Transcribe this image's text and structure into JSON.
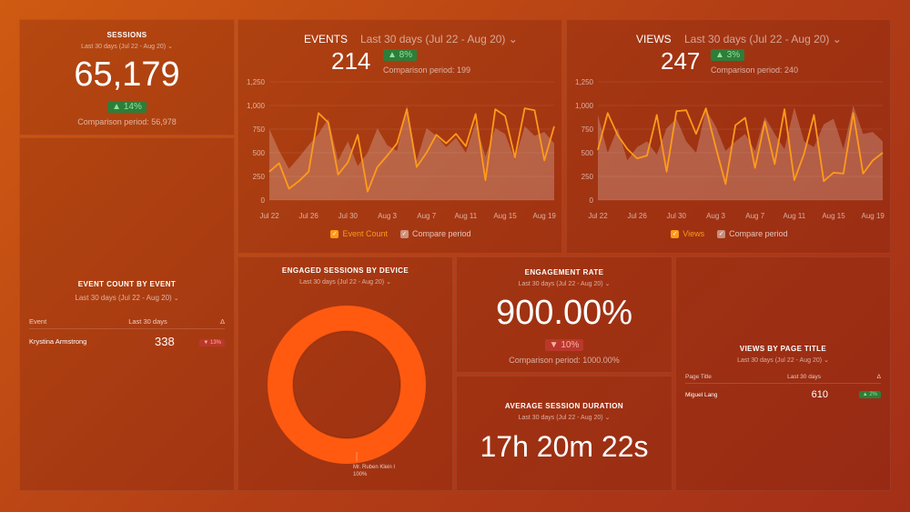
{
  "sessions": {
    "title": "SESSIONS",
    "range": "Last 30 days (Jul 22 - Aug 20)",
    "value": "65,179",
    "delta": "▲ 14%",
    "comparison": "Comparison period: 56,978"
  },
  "event_count_by_event": {
    "title": "EVENT COUNT BY EVENT",
    "range": "Last 30 days (Jul 22 - Aug 20)",
    "columns": [
      "Event",
      "Last 30 days",
      "Δ"
    ],
    "rows": [
      {
        "name": "Krystina Armstrong",
        "value": "338",
        "delta": "▼ 13%"
      }
    ]
  },
  "events": {
    "title": "EVENTS",
    "range": "Last 30 days (Jul 22 - Aug 20)",
    "value": "214",
    "delta": "▲ 8%",
    "comparison": "Comparison period: 199",
    "legend": {
      "primary": "Event Count",
      "compare": "Compare period"
    },
    "chart_data": {
      "type": "line",
      "x": [
        "Jul 22",
        "Jul 23",
        "Jul 24",
        "Jul 25",
        "Jul 26",
        "Jul 27",
        "Jul 28",
        "Jul 29",
        "Jul 30",
        "Jul 31",
        "Aug 1",
        "Aug 2",
        "Aug 3",
        "Aug 4",
        "Aug 5",
        "Aug 6",
        "Aug 7",
        "Aug 8",
        "Aug 9",
        "Aug 10",
        "Aug 11",
        "Aug 12",
        "Aug 13",
        "Aug 14",
        "Aug 15",
        "Aug 16",
        "Aug 17",
        "Aug 18",
        "Aug 19",
        "Aug 20"
      ],
      "xticks": [
        "Jul 22",
        "Jul 26",
        "Jul 30",
        "Aug 3",
        "Aug 7",
        "Aug 11",
        "Aug 15",
        "Aug 19"
      ],
      "yticks": [
        "0",
        "250",
        "500",
        "750",
        "1,000",
        "1,250"
      ],
      "ylim": [
        0,
        1250
      ],
      "series": [
        {
          "name": "Event Count",
          "values": [
            300,
            390,
            120,
            200,
            300,
            920,
            820,
            270,
            400,
            690,
            90,
            350,
            470,
            600,
            960,
            350,
            500,
            690,
            600,
            700,
            570,
            910,
            210,
            960,
            890,
            450,
            970,
            950,
            420,
            780
          ]
        },
        {
          "name": "Compare period",
          "values": [
            750,
            520,
            330,
            450,
            580,
            700,
            860,
            420,
            620,
            360,
            500,
            760,
            580,
            520,
            1000,
            420,
            760,
            680,
            560,
            660,
            500,
            820,
            460,
            760,
            700,
            430,
            780,
            680,
            720,
            600
          ]
        }
      ],
      "colors": {
        "primary": "#ff9a1a",
        "compare": "rgba(255,255,255,0.22)"
      }
    }
  },
  "views": {
    "title": "VIEWS",
    "range": "Last 30 days (Jul 22 - Aug 20)",
    "value": "247",
    "delta": "▲ 3%",
    "comparison": "Comparison period: 240",
    "legend": {
      "primary": "Views",
      "compare": "Compare period"
    },
    "chart_data": {
      "type": "line",
      "x": [
        "Jul 22",
        "Jul 23",
        "Jul 24",
        "Jul 25",
        "Jul 26",
        "Jul 27",
        "Jul 28",
        "Jul 29",
        "Jul 30",
        "Jul 31",
        "Aug 1",
        "Aug 2",
        "Aug 3",
        "Aug 4",
        "Aug 5",
        "Aug 6",
        "Aug 7",
        "Aug 8",
        "Aug 9",
        "Aug 10",
        "Aug 11",
        "Aug 12",
        "Aug 13",
        "Aug 14",
        "Aug 15",
        "Aug 16",
        "Aug 17",
        "Aug 18",
        "Aug 19",
        "Aug 20"
      ],
      "xticks": [
        "Jul 22",
        "Jul 26",
        "Jul 30",
        "Aug 3",
        "Aug 7",
        "Aug 11",
        "Aug 15",
        "Aug 19"
      ],
      "yticks": [
        "0",
        "250",
        "500",
        "750",
        "1,000",
        "1,250"
      ],
      "ylim": [
        0,
        1250
      ],
      "series": [
        {
          "name": "Views",
          "values": [
            530,
            920,
            690,
            540,
            440,
            470,
            900,
            300,
            940,
            950,
            700,
            970,
            560,
            170,
            790,
            870,
            340,
            830,
            380,
            960,
            210,
            490,
            900,
            200,
            290,
            280,
            920,
            280,
            420,
            500
          ]
        },
        {
          "name": "Compare period",
          "values": [
            900,
            500,
            760,
            420,
            560,
            620,
            480,
            760,
            860,
            620,
            500,
            960,
            780,
            520,
            620,
            700,
            520,
            880,
            700,
            540,
            980,
            620,
            560,
            800,
            860,
            540,
            1000,
            700,
            720,
            620
          ]
        }
      ],
      "colors": {
        "primary": "#ff9a1a",
        "compare": "rgba(255,255,255,0.22)"
      }
    }
  },
  "engaged_sessions": {
    "title": "ENGAGED SESSIONS BY DEVICE",
    "range": "Last 30 days (Jul 22 - Aug 20)",
    "chart_data": {
      "type": "pie",
      "slices": [
        {
          "label": "Mr. Ruben Klein I",
          "value": 100,
          "pct": "100%"
        }
      ],
      "color": "#ff5a10"
    }
  },
  "engagement_rate": {
    "title": "ENGAGEMENT RATE",
    "range": "Last 30 days (Jul 22 - Aug 20)",
    "value": "900.00%",
    "delta": "▼ 10%",
    "comparison": "Comparison period: 1000.00%"
  },
  "avg_session": {
    "title": "AVERAGE SESSION DURATION",
    "range": "Last 30 days (Jul 22 - Aug 20)",
    "value": "17h 20m 22s"
  },
  "views_by_page": {
    "title": "VIEWS BY PAGE TITLE",
    "range": "Last 30 days (Jul 22 - Aug 20)",
    "columns": [
      "Page Title",
      "Last 30 days",
      "Δ"
    ],
    "rows": [
      {
        "name": "Miguel Lang",
        "value": "610",
        "delta": "▲ 2%"
      }
    ]
  }
}
